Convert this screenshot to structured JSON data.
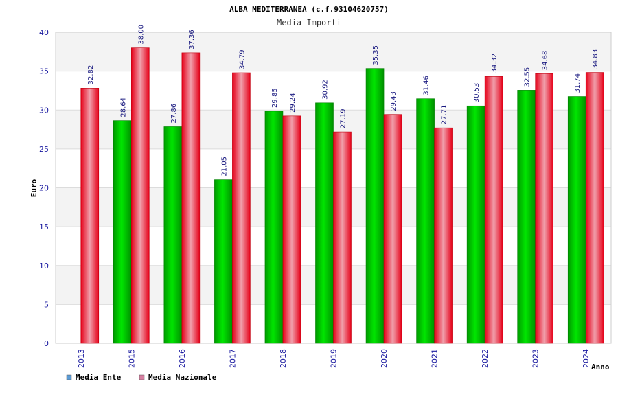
{
  "chart_data": {
    "type": "bar",
    "title": "ALBA MEDITERRANEA (c.f.93104620757)",
    "subtitle": "Media Importi",
    "ylabel": "Euro",
    "xlabel": "Anno",
    "ylim": [
      0,
      40
    ],
    "yticks": [
      "0",
      "5",
      "10",
      "15",
      "20",
      "25",
      "30",
      "35",
      "40"
    ],
    "grid": true,
    "legend_position": "bottom-left",
    "categories": [
      "2013",
      "2015",
      "2016",
      "2017",
      "2018",
      "2019",
      "2020",
      "2021",
      "2022",
      "2023",
      "2024"
    ],
    "series": [
      {
        "name": "Media Ente",
        "color": "#00c000",
        "legend_color": "#5b9bd5",
        "values": [
          null,
          28.64,
          27.86,
          21.05,
          29.85,
          30.92,
          35.35,
          31.46,
          30.53,
          32.55,
          31.74
        ],
        "labels": [
          "",
          "28.64",
          "27.86",
          "21.05",
          "29.85",
          "30.92",
          "35.35",
          "31.46",
          "30.53",
          "32.55",
          "31.74"
        ]
      },
      {
        "name": "Media Nazionale",
        "color": "#e8001c",
        "legend_color": "#d77fa1",
        "values": [
          32.82,
          38.0,
          37.36,
          34.79,
          29.24,
          27.19,
          29.43,
          27.71,
          34.32,
          34.68,
          34.83
        ],
        "labels": [
          "32.82",
          "38.00",
          "37.36",
          "34.79",
          "29.24",
          "27.19",
          "29.43",
          "27.71",
          "34.32",
          "34.68",
          "34.83"
        ]
      }
    ]
  }
}
